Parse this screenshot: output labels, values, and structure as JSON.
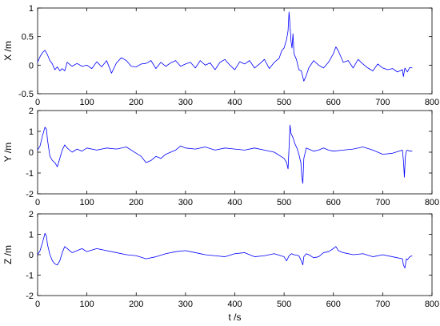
{
  "chart_data": [
    {
      "type": "line",
      "ylabel": "X /m",
      "xlabel": "",
      "xlim": [
        0,
        800
      ],
      "ylim": [
        -0.5,
        1
      ],
      "xticks": [
        0,
        100,
        200,
        300,
        400,
        500,
        600,
        700,
        800
      ],
      "yticks": [
        -0.5,
        0,
        0.5,
        1
      ],
      "grid": false,
      "series": [
        {
          "color": "#0000ff",
          "x": [
            0,
            5,
            10,
            15,
            20,
            25,
            30,
            35,
            40,
            45,
            50,
            55,
            60,
            70,
            80,
            90,
            100,
            110,
            120,
            130,
            140,
            150,
            160,
            170,
            180,
            190,
            200,
            210,
            220,
            230,
            240,
            250,
            260,
            270,
            280,
            290,
            300,
            310,
            320,
            330,
            340,
            350,
            360,
            370,
            380,
            390,
            400,
            410,
            420,
            430,
            440,
            450,
            460,
            470,
            480,
            490,
            495,
            500,
            505,
            508,
            510,
            512,
            514,
            516,
            518,
            520,
            525,
            530,
            535,
            540,
            545,
            550,
            560,
            570,
            580,
            590,
            600,
            605,
            610,
            615,
            620,
            630,
            640,
            650,
            660,
            670,
            680,
            690,
            700,
            710,
            720,
            730,
            740,
            742,
            745,
            750,
            755,
            760
          ],
          "values": [
            0.05,
            0.15,
            0.22,
            0.26,
            0.18,
            0.08,
            0.02,
            -0.08,
            -0.03,
            -0.1,
            -0.06,
            -0.1,
            0.05,
            -0.02,
            0.03,
            -0.02,
            0.0,
            -0.06,
            0.06,
            -0.03,
            0.08,
            -0.14,
            0.04,
            0.13,
            0.08,
            -0.02,
            -0.03,
            0.02,
            0.03,
            0.08,
            -0.06,
            0.05,
            -0.02,
            0.04,
            0.08,
            -0.02,
            0.02,
            0.05,
            -0.05,
            0.08,
            0.0,
            0.04,
            -0.08,
            0.05,
            0.1,
            0.0,
            -0.08,
            0.06,
            0.02,
            0.08,
            -0.05,
            0.02,
            0.1,
            -0.06,
            0.05,
            0.12,
            0.25,
            0.3,
            0.45,
            0.6,
            0.93,
            0.7,
            0.42,
            0.3,
            0.55,
            0.2,
            0.1,
            -0.08,
            -0.1,
            -0.28,
            -0.18,
            -0.05,
            0.08,
            0.0,
            -0.05,
            0.05,
            0.2,
            0.32,
            0.25,
            0.15,
            0.05,
            0.08,
            -0.05,
            0.1,
            0.02,
            -0.05,
            -0.1,
            0.02,
            -0.05,
            -0.08,
            -0.06,
            -0.12,
            -0.08,
            -0.2,
            -0.05,
            -0.12,
            -0.04,
            -0.05
          ]
        }
      ]
    },
    {
      "type": "line",
      "ylabel": "Y /m",
      "xlabel": "",
      "xlim": [
        0,
        800
      ],
      "ylim": [
        -2,
        2
      ],
      "xticks": [
        0,
        100,
        200,
        300,
        400,
        500,
        600,
        700,
        800
      ],
      "yticks": [
        -2,
        -1,
        0,
        1,
        2
      ],
      "grid": false,
      "series": [
        {
          "color": "#0000ff",
          "x": [
            0,
            5,
            10,
            15,
            18,
            20,
            25,
            30,
            35,
            40,
            45,
            50,
            55,
            60,
            70,
            80,
            90,
            100,
            120,
            140,
            160,
            180,
            200,
            210,
            220,
            230,
            240,
            250,
            260,
            270,
            280,
            290,
            300,
            320,
            340,
            360,
            380,
            400,
            420,
            440,
            460,
            480,
            500,
            505,
            508,
            510,
            512,
            514,
            518,
            522,
            526,
            530,
            534,
            536,
            538,
            540,
            545,
            550,
            560,
            570,
            580,
            590,
            600,
            620,
            640,
            660,
            680,
            700,
            720,
            740,
            742,
            744,
            746,
            748,
            750,
            755,
            760
          ],
          "values": [
            0.1,
            0.3,
            0.8,
            1.2,
            1.1,
            0.6,
            -0.2,
            -0.4,
            -0.5,
            -0.7,
            -0.3,
            0.1,
            0.35,
            0.2,
            0.0,
            0.15,
            0.05,
            0.2,
            0.1,
            0.2,
            0.15,
            0.25,
            -0.05,
            -0.2,
            -0.5,
            -0.4,
            -0.2,
            -0.3,
            -0.1,
            0.0,
            0.1,
            0.3,
            0.2,
            0.15,
            0.25,
            0.1,
            0.2,
            0.15,
            0.1,
            0.2,
            0.1,
            0.0,
            -0.3,
            -0.5,
            -0.8,
            0.2,
            1.3,
            0.9,
            0.7,
            0.4,
            0.2,
            -0.1,
            -0.5,
            -1.2,
            -1.5,
            -0.3,
            0.2,
            0.15,
            0.05,
            0.1,
            0.2,
            0.1,
            0.05,
            0.1,
            0.15,
            0.25,
            0.1,
            -0.1,
            -0.05,
            0.1,
            -0.4,
            -1.2,
            -0.2,
            0.05,
            0.1,
            0.05,
            0.05
          ]
        }
      ]
    },
    {
      "type": "line",
      "ylabel": "Z /m",
      "xlabel": "t /s",
      "xlim": [
        0,
        800
      ],
      "ylim": [
        -2,
        2
      ],
      "xticks": [
        0,
        100,
        200,
        300,
        400,
        500,
        600,
        700,
        800
      ],
      "yticks": [
        -2,
        -1,
        0,
        1,
        2
      ],
      "grid": false,
      "series": [
        {
          "color": "#0000ff",
          "x": [
            0,
            5,
            10,
            15,
            18,
            20,
            25,
            30,
            35,
            40,
            45,
            50,
            55,
            60,
            70,
            80,
            90,
            100,
            120,
            140,
            160,
            180,
            200,
            220,
            240,
            260,
            280,
            300,
            320,
            340,
            360,
            380,
            400,
            420,
            440,
            460,
            480,
            500,
            505,
            510,
            515,
            520,
            530,
            535,
            538,
            540,
            545,
            550,
            560,
            570,
            580,
            590,
            600,
            605,
            610,
            620,
            640,
            660,
            680,
            700,
            720,
            740,
            742,
            745,
            748,
            750,
            755,
            760
          ],
          "values": [
            0.0,
            0.2,
            0.6,
            1.05,
            0.9,
            0.5,
            0.0,
            -0.3,
            -0.45,
            -0.5,
            -0.3,
            0.1,
            0.4,
            0.3,
            0.1,
            0.2,
            0.3,
            0.15,
            0.3,
            0.2,
            0.1,
            0.0,
            -0.05,
            -0.2,
            -0.1,
            0.05,
            0.15,
            0.2,
            0.1,
            0.0,
            -0.05,
            -0.1,
            0.05,
            0.1,
            -0.1,
            -0.05,
            0.05,
            -0.1,
            -0.3,
            -0.05,
            0.05,
            0.0,
            -0.05,
            -0.3,
            -0.5,
            -0.1,
            0.05,
            0.0,
            -0.15,
            -0.1,
            0.1,
            0.15,
            0.3,
            0.4,
            0.2,
            0.1,
            0.0,
            0.05,
            -0.1,
            0.0,
            -0.1,
            -0.2,
            -0.5,
            -0.65,
            -0.2,
            -0.25,
            -0.1,
            -0.05
          ]
        }
      ]
    }
  ]
}
